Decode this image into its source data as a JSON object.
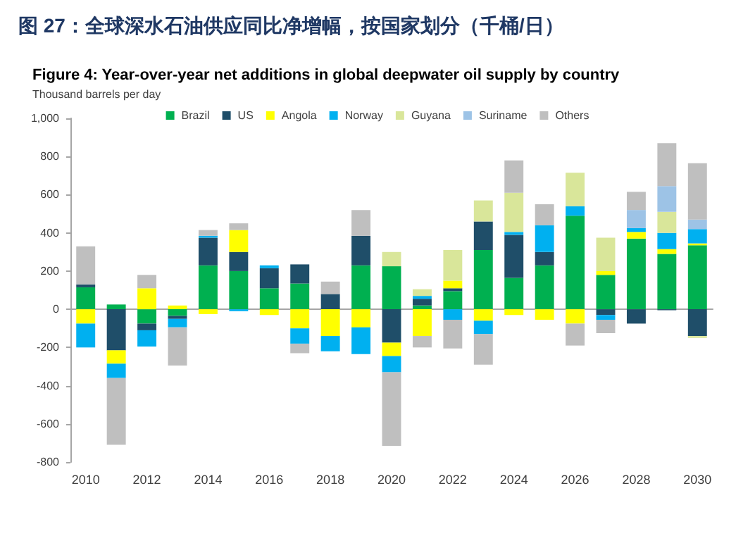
{
  "chart_data": {
    "type": "bar",
    "stacked": true,
    "title": "图 27：全球深水石油供应同比净增幅，按国家划分（千桶/日）",
    "subtitle": "Figure 4: Year-over-year net additions in global deepwater oil supply by country",
    "ylabel": "Thousand barrels per day",
    "categories": [
      "2010",
      null,
      "2012",
      null,
      "2014",
      null,
      "2016",
      null,
      "2018",
      null,
      "2020",
      null,
      "2022",
      null,
      "2024",
      null,
      "2026",
      null,
      "2028",
      null,
      "2030"
    ],
    "series": [
      {
        "name": "Brazil",
        "color": "#00b050",
        "values": [
          115,
          25,
          -75,
          -35,
          230,
          200,
          110,
          135,
          null,
          230,
          225,
          20,
          95,
          310,
          165,
          230,
          490,
          180,
          370,
          290,
          335
        ]
      },
      {
        "name": "US",
        "color": "#1f4e69",
        "values": [
          15,
          -215,
          -35,
          -15,
          145,
          100,
          105,
          100,
          80,
          155,
          -175,
          35,
          15,
          150,
          225,
          70,
          null,
          -30,
          -75,
          -5,
          -140
        ]
      },
      {
        "name": "Angola",
        "color": "#ffff00",
        "values": [
          -75,
          -70,
          110,
          20,
          -25,
          115,
          -30,
          -100,
          -140,
          -95,
          -70,
          -140,
          40,
          -60,
          -30,
          -55,
          -75,
          20,
          35,
          25,
          10
        ]
      },
      {
        "name": "Norway",
        "color": "#00b0f0",
        "values": [
          -125,
          -75,
          -85,
          -45,
          10,
          -10,
          15,
          -80,
          -80,
          -140,
          -85,
          15,
          -55,
          -70,
          15,
          140,
          50,
          -25,
          20,
          85,
          75
        ]
      },
      {
        "name": "Guyana",
        "color": "#d9e69a",
        "values": [
          null,
          null,
          null,
          null,
          null,
          null,
          null,
          null,
          null,
          null,
          75,
          35,
          160,
          110,
          205,
          null,
          175,
          175,
          null,
          110,
          -10
        ]
      },
      {
        "name": "Suriname",
        "color": "#9dc3e6",
        "values": [
          null,
          null,
          null,
          null,
          null,
          null,
          null,
          null,
          null,
          null,
          null,
          null,
          null,
          null,
          null,
          null,
          null,
          null,
          95,
          135,
          50
        ]
      },
      {
        "name": "Others",
        "color": "#bfbfbf",
        "values": [
          200,
          -350,
          70,
          -200,
          30,
          35,
          null,
          -50,
          65,
          135,
          -385,
          -60,
          -150,
          -160,
          170,
          110,
          -115,
          -70,
          95,
          225,
          295
        ]
      }
    ],
    "ylim": [
      -800,
      1000
    ],
    "yticks": [
      -800,
      -600,
      -400,
      -200,
      0,
      200,
      400,
      600,
      800,
      {
        "value": 1000,
        "label": "1,000"
      }
    ],
    "legend": "top"
  }
}
